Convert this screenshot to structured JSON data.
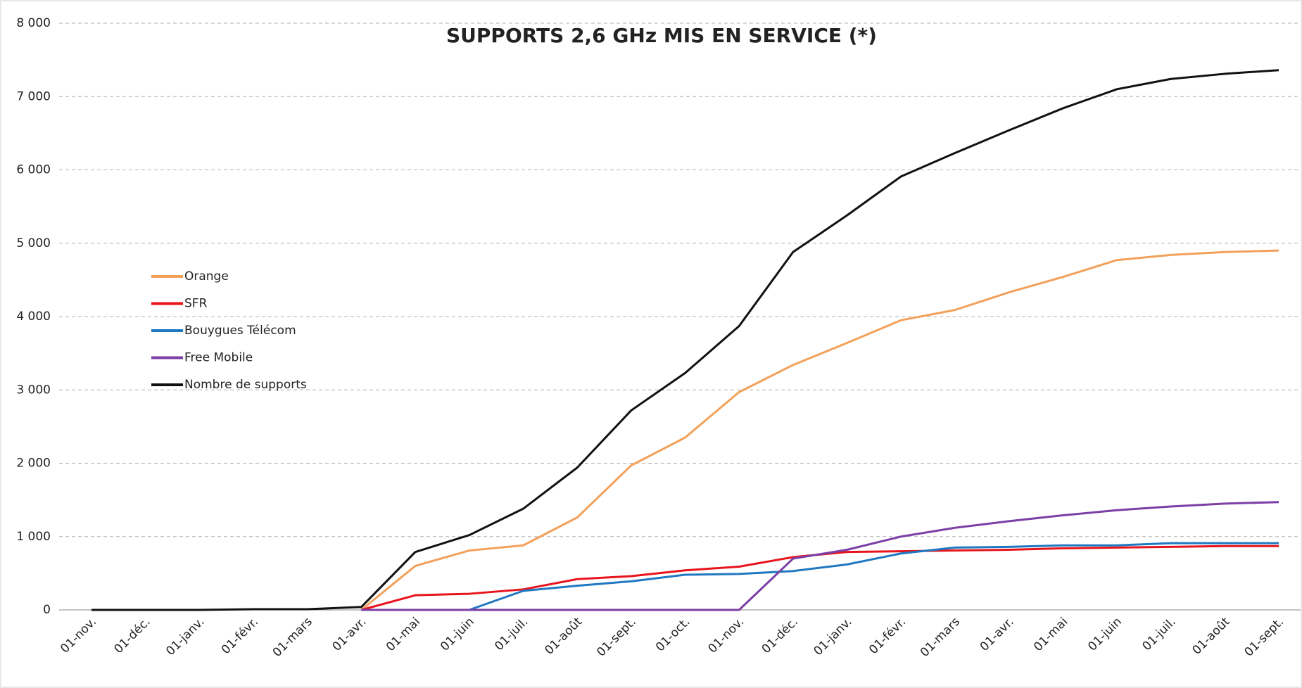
{
  "chart_data": {
    "type": "line",
    "title": "SUPPORTS 2,6 GHz MIS EN SERVICE (*)",
    "categories": [
      "01-nov.",
      "01-déc.",
      "01-janv.",
      "01-févr.",
      "01-mars",
      "01-avr.",
      "01-mai",
      "01-juin",
      "01-juil.",
      "01-août",
      "01-sept.",
      "01-oct.",
      "01-nov.",
      "01-déc.",
      "01-janv.",
      "01-févr.",
      "01-mars",
      "01-avr.",
      "01-mai",
      "01-juin",
      "01-juil.",
      "01-août",
      "01-sept."
    ],
    "series": [
      {
        "name": "Orange",
        "color": "#f3a15a",
        "values": [
          null,
          null,
          null,
          null,
          null,
          0,
          600,
          810,
          880,
          1260,
          1970,
          2350,
          2970,
          3340,
          3640,
          3950,
          4090,
          4330,
          4540,
          4770,
          4840,
          4880,
          4900
        ]
      },
      {
        "name": "SFR",
        "color": "#e8141c",
        "values": [
          null,
          null,
          null,
          null,
          null,
          0,
          200,
          220,
          280,
          420,
          460,
          540,
          590,
          720,
          790,
          800,
          810,
          820,
          840,
          850,
          860,
          870,
          870
        ]
      },
      {
        "name": "Bouygues Télécom",
        "color": "#1f78c1",
        "values": [
          null,
          null,
          null,
          null,
          null,
          0,
          0,
          0,
          260,
          330,
          390,
          480,
          490,
          530,
          620,
          770,
          850,
          860,
          880,
          880,
          910,
          910,
          910
        ]
      },
      {
        "name": "Free Mobile",
        "color": "#7b3fa6",
        "values": [
          null,
          null,
          null,
          null,
          null,
          0,
          0,
          0,
          0,
          0,
          0,
          0,
          0,
          700,
          820,
          1000,
          1120,
          1210,
          1290,
          1360,
          1410,
          1450,
          1470
        ]
      },
      {
        "name": "Nombre de supports",
        "color": "#111111",
        "values": [
          0,
          0,
          0,
          10,
          10,
          40,
          790,
          1020,
          1380,
          1940,
          2720,
          3230,
          3870,
          4880,
          5380,
          5910,
          6230,
          6540,
          6840,
          7100,
          7240,
          7310,
          7360
        ]
      }
    ],
    "ylim": [
      0,
      8000
    ],
    "yticks": [
      0,
      {
        "value": 1000,
        "label": "1 000"
      },
      {
        "value": 2000,
        "label": "2 000"
      },
      {
        "value": 3000,
        "label": "3 000"
      },
      {
        "value": 4000,
        "label": "4 000"
      },
      {
        "value": 5000,
        "label": "5 000"
      },
      {
        "value": 6000,
        "label": "6 000"
      },
      {
        "value": 7000,
        "label": "7 000"
      },
      {
        "value": 8000,
        "label": "8 000"
      }
    ],
    "grid": true,
    "legend": "left"
  }
}
